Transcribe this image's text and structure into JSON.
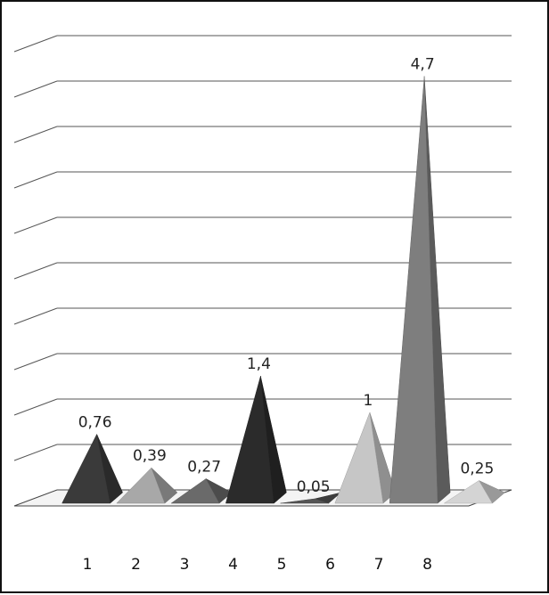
{
  "chart_data": {
    "type": "bar",
    "bar_shape": "pyramid",
    "three_d": true,
    "categories": [
      "1",
      "2",
      "3",
      "4",
      "5",
      "6",
      "7",
      "8"
    ],
    "values": [
      0.76,
      0.39,
      0.27,
      1.4,
      0.05,
      1,
      4.7,
      0.25
    ],
    "data_labels": [
      "0,76",
      "0,39",
      "0,27",
      "1,4",
      "0,05",
      "1",
      "4,7",
      "0,25"
    ],
    "title": "",
    "xlabel": "",
    "ylabel": "",
    "ylim": [
      0,
      5
    ],
    "grid": true,
    "legend": "none",
    "colors": [
      "#3a3a3a",
      "#a8a8a8",
      "#6a6a6a",
      "#2b2b2b",
      "#555555",
      "#c6c6c6",
      "#7e7e7e",
      "#d4d4d4"
    ]
  }
}
